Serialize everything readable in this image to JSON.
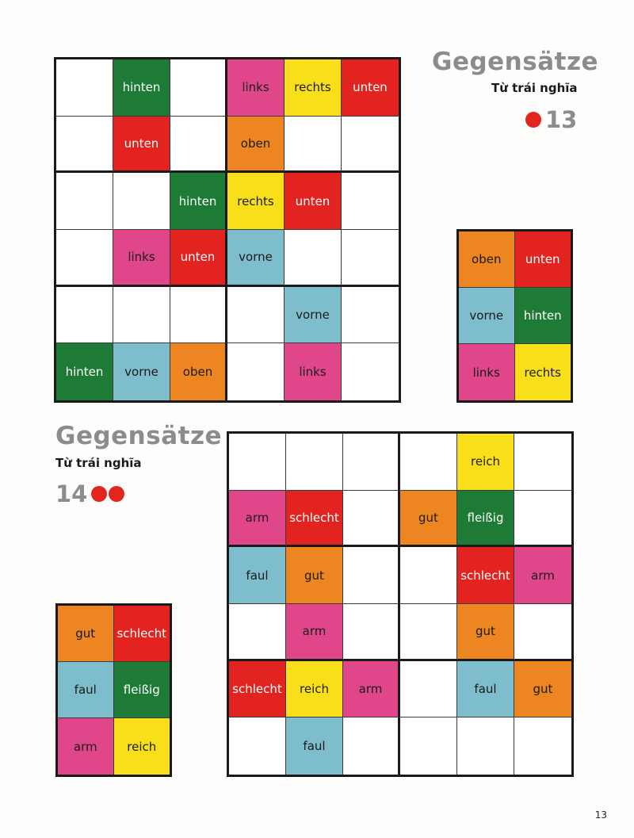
{
  "colors": {
    "green": "#1e7b35",
    "red": "#e2231f",
    "pink": "#e0478a",
    "yellow": "#f9df1a",
    "orange": "#ed8620",
    "blue": "#7dbdcc",
    "empty": "#ffffff"
  },
  "puzzle13": {
    "title": "Gegensätze",
    "subtitle": "Từ trái nghĩa",
    "number": "13",
    "difficulty_dots": 1,
    "grid": [
      [
        null,
        {
          "t": "hinten",
          "c": "green"
        },
        null,
        {
          "t": "links",
          "c": "pink"
        },
        {
          "t": "rechts",
          "c": "yellow"
        },
        {
          "t": "unten",
          "c": "red"
        }
      ],
      [
        null,
        {
          "t": "unten",
          "c": "red"
        },
        null,
        {
          "t": "oben",
          "c": "orange"
        },
        null,
        null
      ],
      [
        null,
        null,
        {
          "t": "hinten",
          "c": "green"
        },
        {
          "t": "rechts",
          "c": "yellow"
        },
        {
          "t": "unten",
          "c": "red"
        },
        null
      ],
      [
        null,
        {
          "t": "links",
          "c": "pink"
        },
        {
          "t": "unten",
          "c": "red"
        },
        {
          "t": "vorne",
          "c": "blue"
        },
        null,
        null
      ],
      [
        null,
        null,
        null,
        null,
        {
          "t": "vorne",
          "c": "blue"
        },
        null
      ],
      [
        {
          "t": "hinten",
          "c": "green"
        },
        {
          "t": "vorne",
          "c": "blue"
        },
        {
          "t": "oben",
          "c": "orange"
        },
        null,
        {
          "t": "links",
          "c": "pink"
        },
        null
      ]
    ],
    "legend": [
      [
        {
          "t": "oben",
          "c": "orange"
        },
        {
          "t": "unten",
          "c": "red"
        }
      ],
      [
        {
          "t": "vorne",
          "c": "blue"
        },
        {
          "t": "hinten",
          "c": "green"
        }
      ],
      [
        {
          "t": "links",
          "c": "pink"
        },
        {
          "t": "rechts",
          "c": "yellow"
        }
      ]
    ]
  },
  "puzzle14": {
    "title": "Gegensätze",
    "subtitle": "Từ trái nghĩa",
    "number": "14",
    "difficulty_dots": 2,
    "grid": [
      [
        null,
        null,
        null,
        null,
        {
          "t": "reich",
          "c": "yellow"
        },
        null
      ],
      [
        {
          "t": "arm",
          "c": "pink"
        },
        {
          "t": "schlecht",
          "c": "red"
        },
        null,
        {
          "t": "gut",
          "c": "orange"
        },
        {
          "t": "fleißig",
          "c": "green"
        },
        null
      ],
      [
        {
          "t": "faul",
          "c": "blue"
        },
        {
          "t": "gut",
          "c": "orange"
        },
        null,
        null,
        {
          "t": "schlecht",
          "c": "red"
        },
        {
          "t": "arm",
          "c": "pink"
        }
      ],
      [
        null,
        {
          "t": "arm",
          "c": "pink"
        },
        null,
        null,
        {
          "t": "gut",
          "c": "orange"
        },
        null
      ],
      [
        {
          "t": "schlecht",
          "c": "red"
        },
        {
          "t": "reich",
          "c": "yellow"
        },
        {
          "t": "arm",
          "c": "pink"
        },
        null,
        {
          "t": "faul",
          "c": "blue"
        },
        {
          "t": "gut",
          "c": "orange"
        }
      ],
      [
        null,
        {
          "t": "faul",
          "c": "blue"
        },
        null,
        null,
        null,
        null
      ]
    ],
    "legend": [
      [
        {
          "t": "gut",
          "c": "orange"
        },
        {
          "t": "schlecht",
          "c": "red"
        }
      ],
      [
        {
          "t": "faul",
          "c": "blue"
        },
        {
          "t": "fleißig",
          "c": "green"
        }
      ],
      [
        {
          "t": "arm",
          "c": "pink"
        },
        {
          "t": "reich",
          "c": "yellow"
        }
      ]
    ]
  },
  "page_number": "13"
}
